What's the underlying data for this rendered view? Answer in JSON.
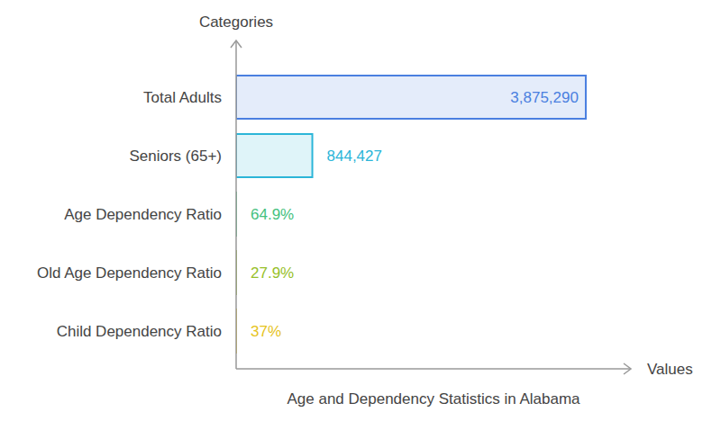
{
  "chart_data": {
    "type": "bar",
    "orientation": "horizontal",
    "title": "Age and Dependency Statistics in Alabama",
    "xlabel": "Values",
    "ylabel": "Categories",
    "categories": [
      "Total Adults",
      "Seniors (65+)",
      "Age Dependency Ratio",
      "Old Age Dependency Ratio",
      "Child Dependency Ratio"
    ],
    "values": [
      3875290,
      844427,
      64.9,
      27.9,
      37
    ],
    "value_labels": [
      "3,875,290",
      "844,427",
      "64.9%",
      "27.9%",
      "37%"
    ],
    "colors": [
      "#4a7fe0",
      "#2bb5d8",
      "#45c17e",
      "#97c02a",
      "#e6c31c"
    ],
    "xlim": [
      0,
      4375000
    ],
    "xticks": [],
    "data_labels": true,
    "tick_labels": "y",
    "grid": false
  }
}
